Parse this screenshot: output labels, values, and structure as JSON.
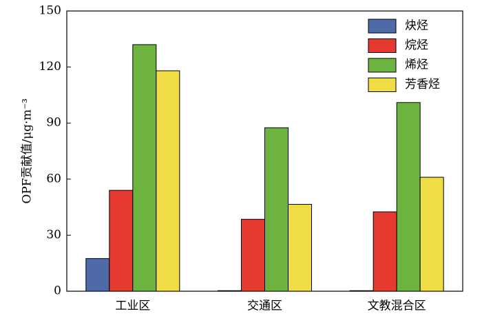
{
  "chart_data": {
    "type": "bar",
    "y_label": "OPF贡献值/μg·m⁻³",
    "categories": [
      "工业区",
      "交通区",
      "文教混合区"
    ],
    "series": [
      {
        "name": "炔烃",
        "color": "#4f6aa8",
        "values": [
          17.5,
          0.3,
          0.3
        ]
      },
      {
        "name": "烷烃",
        "color": "#e63a30",
        "values": [
          54,
          38.5,
          42.5
        ]
      },
      {
        "name": "烯烃",
        "color": "#6db33f",
        "values": [
          132,
          87.5,
          101
        ]
      },
      {
        "name": "芳香烃",
        "color": "#f0dc45",
        "values": [
          118,
          46.5,
          61
        ]
      }
    ],
    "ylim": [
      0,
      150
    ],
    "yticks": [
      0,
      30,
      60,
      90,
      120,
      150
    ],
    "legend": "upper-right"
  }
}
